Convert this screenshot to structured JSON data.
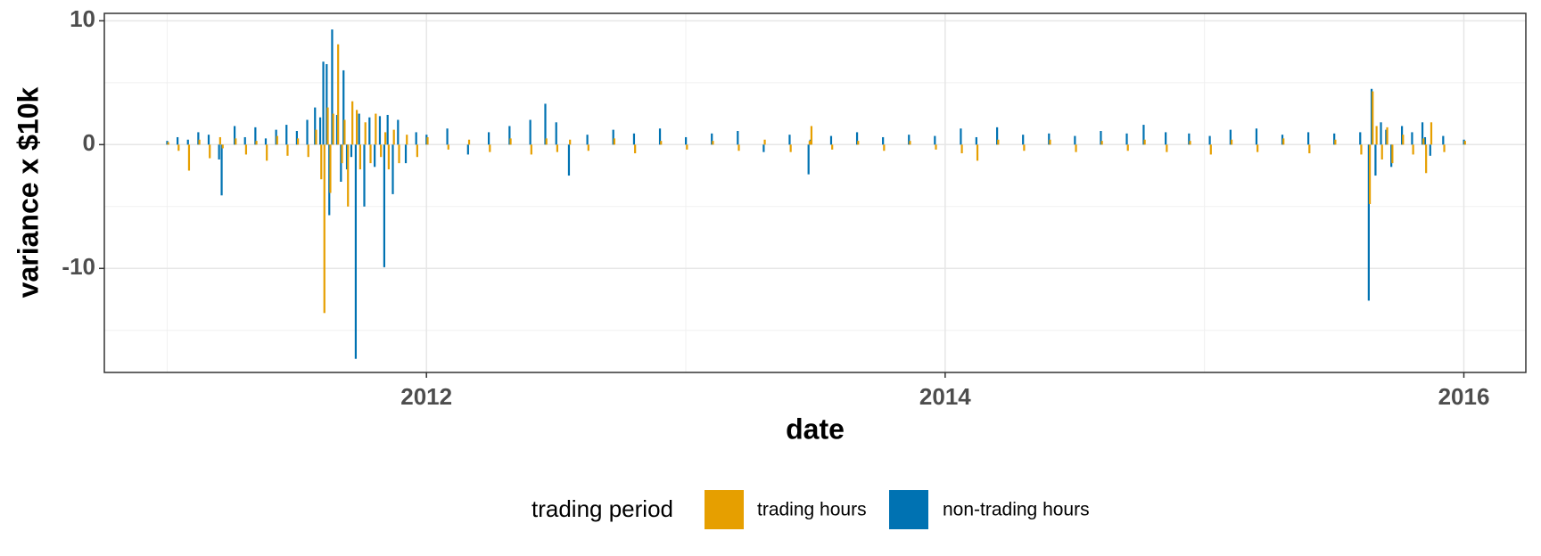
{
  "chart_data": {
    "type": "bar",
    "x_label": "date",
    "y_label": "variance x $10k",
    "legend_title": "trading period",
    "xlim": [
      2010.758,
      2016.239
    ],
    "xticks": [
      2012,
      2014,
      2016
    ],
    "xminorticks": [
      2011,
      2013,
      2015
    ],
    "ylim": [
      -18.4,
      10.6
    ],
    "yticks": [
      -10,
      0,
      10
    ],
    "yminorticks": [
      -15,
      -5,
      5
    ],
    "grid": true,
    "x": [
      2011.0,
      2011.04,
      2011.08,
      2011.12,
      2011.16,
      2011.2,
      2011.21,
      2011.26,
      2011.3,
      2011.34,
      2011.38,
      2011.42,
      2011.46,
      2011.5,
      2011.54,
      2011.57,
      2011.59,
      2011.602,
      2011.615,
      2011.625,
      2011.636,
      2011.655,
      2011.67,
      2011.68,
      2011.693,
      2011.71,
      2011.727,
      2011.74,
      2011.76,
      2011.78,
      2011.8,
      2011.82,
      2011.837,
      2011.85,
      2011.87,
      2011.89,
      2011.92,
      2011.96,
      2012.0,
      2012.08,
      2012.16,
      2012.24,
      2012.32,
      2012.4,
      2012.458,
      2012.5,
      2012.549,
      2012.62,
      2012.72,
      2012.8,
      2012.9,
      2013.0,
      2013.1,
      2013.2,
      2013.3,
      2013.4,
      2013.473,
      2013.48,
      2013.56,
      2013.66,
      2013.76,
      2013.86,
      2013.96,
      2014.06,
      2014.12,
      2014.2,
      2014.3,
      2014.4,
      2014.5,
      2014.6,
      2014.7,
      2014.765,
      2014.85,
      2014.94,
      2015.02,
      2015.1,
      2015.2,
      2015.3,
      2015.4,
      2015.5,
      2015.6,
      2015.633,
      2015.644,
      2015.659,
      2015.68,
      2015.7,
      2015.72,
      2015.761,
      2015.8,
      2015.84,
      2015.85,
      2015.87,
      2015.92,
      2016.0
    ],
    "series": [
      {
        "name": "trading hours",
        "color": "#E69F00",
        "values": [
          0.2,
          -0.5,
          -2.1,
          0.4,
          -1.1,
          0.6,
          -0.3,
          0.5,
          -0.8,
          0.3,
          -1.3,
          0.7,
          -0.9,
          0.5,
          -1.0,
          1.2,
          -2.8,
          -13.6,
          3.0,
          -3.9,
          2.5,
          8.1,
          -1.5,
          2.0,
          -5.0,
          3.5,
          2.8,
          -2.0,
          1.8,
          -1.5,
          2.5,
          -1.0,
          1.0,
          -2.0,
          1.2,
          -1.5,
          0.8,
          -1.0,
          0.6,
          -0.4,
          0.4,
          -0.6,
          0.5,
          -0.8,
          0.5,
          -0.6,
          0.4,
          -0.5,
          0.5,
          -0.7,
          0.3,
          -0.4,
          0.3,
          -0.5,
          0.4,
          -0.6,
          0.3,
          1.5,
          -0.4,
          0.3,
          -0.5,
          0.3,
          -0.4,
          -0.7,
          -1.3,
          0.4,
          -0.5,
          0.4,
          -0.6,
          0.3,
          -0.5,
          0.4,
          -0.6,
          0.3,
          -0.8,
          0.4,
          -0.6,
          0.5,
          -0.7,
          0.4,
          -0.8,
          -4.8,
          4.3,
          1.5,
          -1.2,
          1.4,
          -1.5,
          0.8,
          -0.8,
          0.5,
          -2.3,
          1.8,
          -0.6,
          0.3
        ]
      },
      {
        "name": "non-trading hours",
        "color": "#0072B2",
        "values": [
          0.3,
          0.6,
          0.4,
          1.0,
          0.8,
          -1.2,
          -4.1,
          1.5,
          0.6,
          1.4,
          0.5,
          1.2,
          1.6,
          1.1,
          2.0,
          3.0,
          2.2,
          6.7,
          6.5,
          -5.7,
          9.3,
          2.4,
          -3.0,
          6.0,
          -2.0,
          -1.0,
          -17.3,
          2.5,
          -5.0,
          2.2,
          -1.8,
          2.3,
          -9.9,
          2.4,
          -4.0,
          2.0,
          -1.5,
          1.0,
          0.8,
          1.3,
          -0.8,
          1.0,
          1.5,
          2.0,
          3.3,
          1.8,
          -2.5,
          0.8,
          1.2,
          0.9,
          1.3,
          0.6,
          0.9,
          1.1,
          -0.6,
          0.8,
          -2.4,
          0.4,
          0.7,
          1.0,
          0.6,
          0.8,
          0.7,
          1.3,
          0.6,
          1.4,
          0.8,
          0.9,
          0.7,
          1.1,
          0.9,
          1.6,
          1.0,
          0.9,
          0.7,
          1.2,
          1.3,
          0.8,
          1.0,
          0.9,
          1.0,
          -12.6,
          4.5,
          -2.5,
          1.8,
          1.2,
          -1.8,
          1.5,
          1.0,
          1.8,
          0.6,
          -0.9,
          0.7,
          0.4
        ]
      }
    ]
  }
}
